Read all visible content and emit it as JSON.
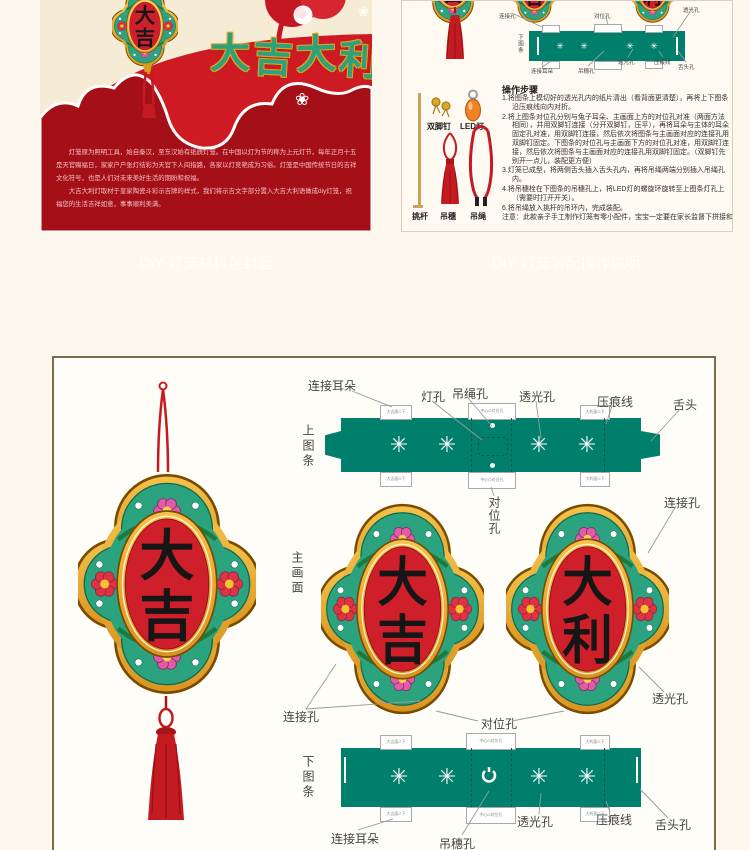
{
  "cover": {
    "headline_chars": [
      "大",
      "吉",
      "大",
      "利"
    ],
    "ornament_chars": [
      "大",
      "吉"
    ],
    "flower_icon": "❀",
    "paragraphs": [
      "灯笼原为照明工具，始自秦汉，至东汉始有纸质灯笼。在中国以灯为节的称为上元灯节，每年正月十五是天官赐福日，家家户户张灯结彩为天官下人间指路，各家以灯竞艳成为习俗。灯笼是中国传统节日的吉祥文化符号，也是人们对未来美好生活的期盼和祝福。",
      "大吉大利灯取材于皇家陶瓷斗彩示吉牌的样式，我们将示吉文字部分置入大吉大利语做成diy灯笼，祝福您的生活吉祥如意，事事顺利美满。"
    ]
  },
  "captions": {
    "left": "DIY 灯笼材料包封面",
    "right": "DIY 灯笼装配操作说明"
  },
  "instructions": {
    "title": "操作步骤",
    "steps": [
      "1.将图条上模切好的透光孔内的纸片清出（看背面更清楚），再将上下图条沿压痕线向内对折。",
      "2.将上图条对位孔分别与兔子耳朵、主画面上方的对位孔对准（两面方法相同），并用双脚钉连接（分开双脚钉，压平），再将耳朵与主体的耳朵固定孔对准，用双脚钉连接，然后依次将图条与主画面对应的连接孔用双脚钉固定。下图条的对位孔与主画面下方的对位孔对准，用双脚钉连接，然后依次将图条与主画面对应的连接孔用双脚钉固定。（双脚钉先别开一点儿，装配更方便）",
      "3.灯笼已成型，将两侧舌头插入舌头孔内，再将吊绳两端分别插入吊绳孔内。",
      "4.将吊穗栓在下图条的吊穗孔上，将LED灯的螺旋环旋转至上图条灯孔上（需要时打开开关）。",
      "6.将吊绳放入挑杆的吊环内，完成装配。"
    ],
    "note": "注意：此款亲子手工制作灯笼有零小配件，宝宝一定要在家长监督下拼接和玩耍",
    "parts": {
      "fastener": "双脚钉",
      "led": "LED灯",
      "stick": "挑杆",
      "tassel": "吊穗",
      "cord": "吊绳"
    }
  },
  "diagram": {
    "strip_labels": {
      "top": "上图条",
      "main": "主画面",
      "bottom": "下图条"
    },
    "callouts": {
      "connect_ear": "连接耳朵",
      "lamp_hole": "灯孔",
      "rope_hole": "吊绳孔",
      "light_hole": "透光孔",
      "crease": "压痕线",
      "tongue": "舌头",
      "tongue_hole": "舌头孔",
      "align_hole": "对位孔",
      "connect_hole": "连接孔",
      "tassel_hole": "吊穗孔"
    },
    "tabs": {
      "side_left": "大吉面O下",
      "side_right": "大利面O下",
      "center": "中心O对位孔"
    },
    "medallions": [
      {
        "chars": [
          "大",
          "吉"
        ]
      },
      {
        "chars": [
          "大",
          "利"
        ]
      }
    ],
    "cutout_glyph": "✳"
  },
  "colors": {
    "teal": "#00806c",
    "red": "#ce1a23",
    "dark_red": "#a50f17",
    "gold": "#e8a93c",
    "cream": "#f6ebd5",
    "page_bg": "#fdf7ee"
  }
}
